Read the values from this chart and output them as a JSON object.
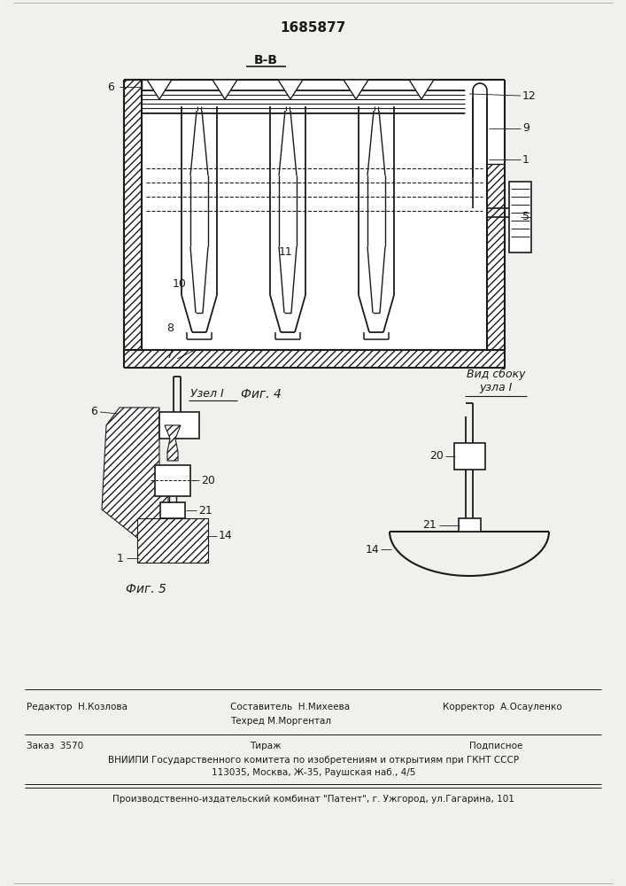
{
  "patent_number": "1685877",
  "fig4_label": "Фиг. 4",
  "fig5_label": "Фиг. 5",
  "section_label": "В-В",
  "uzell_label": "Узел I",
  "vid_label": "Вид сбоку\nузла I",
  "editor_line": "Редактор  Н.Козлова",
  "composer_line": "Составитель  Н.Михеева",
  "techred_line": "Техред М.Моргентал",
  "corrector_line": "Корректор  А.Осауленко",
  "order_line": "Заказ  3570",
  "tirazh_line": "Тираж",
  "podpisnoe_line": "Подписное",
  "vniiipi_line": "ВНИИПИ Государственного комитета по изобретениям и открытиям при ГКНТ СССР",
  "address_line": "113035, Москва, Ж-35, Раушская наб., 4/5",
  "factory_line": "Производственно-издательский комбинат \"Патент\", г. Ужгород, ул.Гагарина, 101",
  "bg_color": "#f0f0ec",
  "line_color": "#1a1a1a"
}
